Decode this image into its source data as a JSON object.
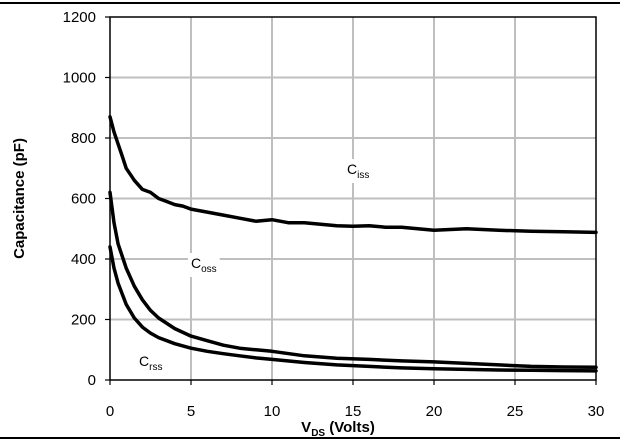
{
  "chart_data": {
    "type": "line",
    "xlabel_main": "V",
    "xlabel_sub": "DS",
    "xlabel_rest": " (Volts)",
    "ylabel": "Capacitance (pF)",
    "xlim": [
      0,
      30
    ],
    "ylim": [
      0,
      1200
    ],
    "x_ticks": [
      "0",
      "5",
      "10",
      "15",
      "20",
      "25",
      "30"
    ],
    "y_ticks": [
      "0",
      "200",
      "400",
      "600",
      "800",
      "1000",
      "1200"
    ],
    "grid": true,
    "line_color": "#000000",
    "grid_color": "#bfbfbf",
    "series": [
      {
        "name_main": "C",
        "name_sub": "iss",
        "x": [
          0,
          0.25,
          0.5,
          0.75,
          1,
          1.25,
          1.5,
          2,
          2.5,
          3,
          3.5,
          4,
          4.5,
          5,
          6,
          7,
          8,
          9,
          10,
          11,
          12,
          13,
          14,
          15,
          16,
          17,
          18,
          19,
          20,
          22,
          24,
          26,
          28,
          30
        ],
        "y": [
          870,
          820,
          780,
          740,
          700,
          680,
          660,
          630,
          620,
          600,
          590,
          580,
          575,
          565,
          555,
          545,
          535,
          525,
          530,
          520,
          520,
          515,
          510,
          508,
          510,
          505,
          505,
          500,
          495,
          500,
          495,
          492,
          490,
          488
        ]
      },
      {
        "name_main": "C",
        "name_sub": "oss",
        "x": [
          0,
          0.25,
          0.5,
          1,
          1.5,
          2,
          2.5,
          3,
          4,
          5,
          6,
          7,
          8,
          9,
          10,
          12,
          14,
          16,
          18,
          20,
          22,
          24,
          26,
          28,
          30
        ],
        "y": [
          620,
          520,
          450,
          370,
          310,
          265,
          230,
          205,
          170,
          145,
          130,
          115,
          105,
          100,
          95,
          80,
          72,
          68,
          63,
          60,
          55,
          50,
          45,
          43,
          42
        ]
      },
      {
        "name_main": "C",
        "name_sub": "rss",
        "x": [
          0,
          0.25,
          0.5,
          1,
          1.5,
          2,
          2.5,
          3,
          4,
          5,
          6,
          7,
          8,
          9,
          10,
          12,
          14,
          16,
          18,
          20,
          22,
          24,
          26,
          28,
          30
        ],
        "y": [
          440,
          370,
          320,
          250,
          205,
          175,
          155,
          140,
          120,
          105,
          95,
          87,
          80,
          73,
          68,
          58,
          50,
          45,
          40,
          37,
          35,
          33,
          32,
          31,
          30
        ]
      }
    ]
  }
}
